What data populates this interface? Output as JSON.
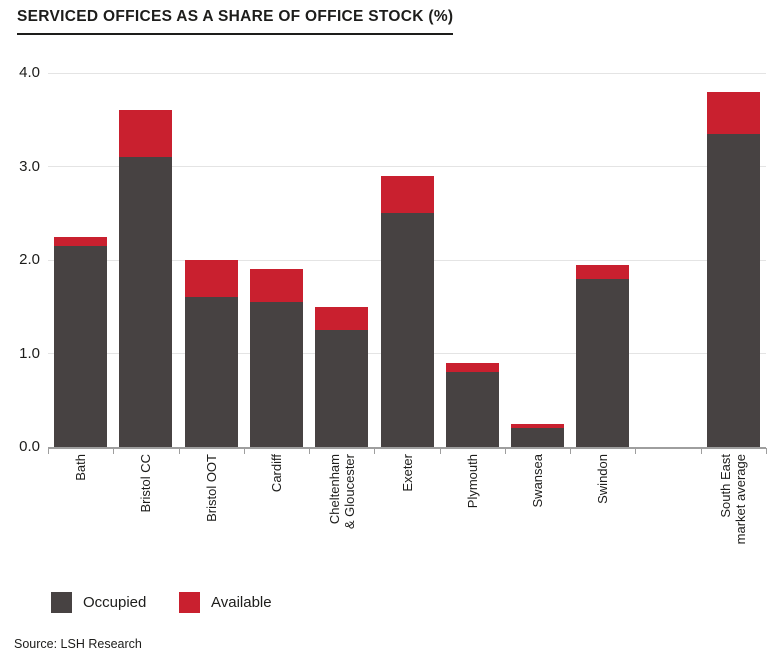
{
  "page": {
    "title": "SERVICED OFFICES AS A SHARE OF OFFICE STOCK (%)",
    "source": "Source: LSH Research"
  },
  "legend": [
    {
      "label": "Occupied",
      "color": "#474242"
    },
    {
      "label": "Available",
      "color": "#c9202f"
    }
  ],
  "chart_data": {
    "type": "bar",
    "stacked": true,
    "title": "SERVICED OFFICES AS A SHARE OF OFFICE STOCK (%)",
    "categories": [
      "Bath",
      "Bristol CC",
      "Bristol OOT",
      "Cardiff",
      "Cheltenham\n& Gloucester",
      "Exeter",
      "Plymouth",
      "Swansea",
      "Swindon",
      "",
      "South East\nmarket average"
    ],
    "series": [
      {
        "name": "Occupied",
        "color": "#474242",
        "values": [
          2.15,
          3.1,
          1.6,
          1.55,
          1.25,
          2.5,
          0.8,
          0.2,
          1.8,
          null,
          3.35
        ]
      },
      {
        "name": "Available",
        "color": "#c9202f",
        "values": [
          0.1,
          0.5,
          0.4,
          0.35,
          0.25,
          0.4,
          0.1,
          0.05,
          0.15,
          null,
          0.45
        ]
      }
    ],
    "totals": [
      2.25,
      3.6,
      2.0,
      1.9,
      1.5,
      2.9,
      0.9,
      0.25,
      1.95,
      null,
      3.8
    ],
    "xlabel": "",
    "ylabel": "",
    "ylim": [
      0,
      4
    ],
    "yticks": [
      0,
      1,
      2,
      3,
      4
    ],
    "ytick_labels": [
      "0.0",
      "1.0",
      "2.0",
      "3.0",
      "4.0"
    ],
    "grid": true,
    "legend_position": "bottom"
  }
}
